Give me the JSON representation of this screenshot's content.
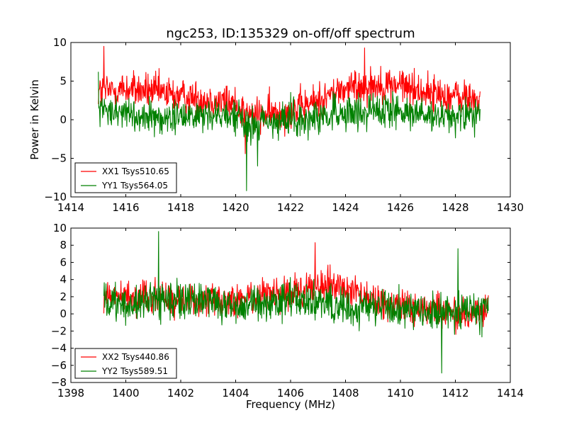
{
  "chart_data": [
    {
      "type": "line",
      "title": "ngc253, ID:135329 on-off/off spectrum",
      "xlabel": "",
      "ylabel": "Power in Kelvin",
      "xlim": [
        1414,
        1430
      ],
      "ylim": [
        -10,
        10
      ],
      "xticks": [
        1414,
        1416,
        1418,
        1420,
        1422,
        1424,
        1426,
        1428,
        1430
      ],
      "yticks": [
        -10,
        -5,
        0,
        5,
        10
      ],
      "ytick_labels": [
        "−10",
        "−5",
        "0",
        "5",
        "10"
      ],
      "legend_position": "lower left",
      "x_range": [
        1415.0,
        1428.9
      ],
      "series": [
        {
          "name": "XX1 Tsys510.65",
          "color": "#ff0000",
          "baseline": [
            [
              1415.0,
              3.6
            ],
            [
              1416.0,
              4.0
            ],
            [
              1417.0,
              3.6
            ],
            [
              1418.0,
              3.0
            ],
            [
              1419.0,
              2.6
            ],
            [
              1420.0,
              2.0
            ],
            [
              1420.5,
              0.5
            ],
            [
              1421.0,
              0.6
            ],
            [
              1422.0,
              1.0
            ],
            [
              1423.0,
              2.5
            ],
            [
              1424.0,
              4.0
            ],
            [
              1425.0,
              4.5
            ],
            [
              1426.0,
              4.5
            ],
            [
              1427.0,
              3.5
            ],
            [
              1428.0,
              3.0
            ],
            [
              1428.9,
              2.5
            ]
          ],
          "noise": 1.6,
          "peaks": [
            [
              1415.2,
              9.5
            ],
            [
              1420.35,
              -4.4
            ],
            [
              1424.7,
              9.3
            ]
          ]
        },
        {
          "name": "YY1 Tsys564.05",
          "color": "#008000",
          "baseline": [
            [
              1415.0,
              1.5
            ],
            [
              1416.0,
              1.0
            ],
            [
              1417.0,
              0.2
            ],
            [
              1418.0,
              0.5
            ],
            [
              1419.0,
              0.8
            ],
            [
              1420.0,
              0.5
            ],
            [
              1420.5,
              -1.0
            ],
            [
              1421.0,
              -0.5
            ],
            [
              1422.0,
              0.0
            ],
            [
              1423.0,
              0.5
            ],
            [
              1424.0,
              1.0
            ],
            [
              1425.0,
              1.2
            ],
            [
              1426.0,
              1.0
            ],
            [
              1427.0,
              0.5
            ],
            [
              1428.0,
              0.5
            ],
            [
              1428.9,
              0.5
            ]
          ],
          "noise": 1.5,
          "peaks": [
            [
              1415.0,
              6.2
            ],
            [
              1420.4,
              -9.2
            ],
            [
              1420.8,
              -6.0
            ]
          ]
        }
      ]
    },
    {
      "type": "line",
      "title": "",
      "xlabel": "Frequency (MHz)",
      "ylabel": "",
      "xlim": [
        1398,
        1414
      ],
      "ylim": [
        -8,
        10
      ],
      "xticks": [
        1398,
        1400,
        1402,
        1404,
        1406,
        1408,
        1410,
        1412,
        1414
      ],
      "yticks": [
        -8,
        -6,
        -4,
        -2,
        0,
        2,
        4,
        6,
        8,
        10
      ],
      "ytick_labels": [
        "−8",
        "−6",
        "−4",
        "−2",
        "0",
        "2",
        "4",
        "6",
        "8",
        "10"
      ],
      "legend_position": "lower left",
      "x_range": [
        1399.2,
        1413.2
      ],
      "series": [
        {
          "name": "XX2 Tsys440.86",
          "color": "#ff0000",
          "baseline": [
            [
              1399.2,
              2.5
            ],
            [
              1400.0,
              2.0
            ],
            [
              1401.0,
              2.0
            ],
            [
              1402.0,
              1.5
            ],
            [
              1403.0,
              2.0
            ],
            [
              1404.0,
              1.5
            ],
            [
              1405.0,
              2.0
            ],
            [
              1406.0,
              2.5
            ],
            [
              1407.0,
              3.5
            ],
            [
              1408.0,
              3.0
            ],
            [
              1409.0,
              1.5
            ],
            [
              1410.0,
              1.0
            ],
            [
              1411.0,
              0.5
            ],
            [
              1412.0,
              0.0
            ],
            [
              1413.2,
              0.5
            ]
          ],
          "noise": 1.3,
          "peaks": [
            [
              1406.9,
              8.3
            ]
          ]
        },
        {
          "name": "YY2 Tsys589.51",
          "color": "#008000",
          "baseline": [
            [
              1399.2,
              1.5
            ],
            [
              1400.0,
              1.0
            ],
            [
              1401.0,
              1.5
            ],
            [
              1402.0,
              1.5
            ],
            [
              1403.0,
              1.5
            ],
            [
              1404.0,
              1.0
            ],
            [
              1405.0,
              1.0
            ],
            [
              1406.0,
              1.5
            ],
            [
              1407.0,
              1.5
            ],
            [
              1408.0,
              0.5
            ],
            [
              1409.0,
              1.0
            ],
            [
              1410.0,
              0.5
            ],
            [
              1411.0,
              0.0
            ],
            [
              1412.0,
              0.5
            ],
            [
              1413.2,
              0.5
            ]
          ],
          "noise": 1.5,
          "peaks": [
            [
              1401.2,
              9.6
            ],
            [
              1411.5,
              -6.9
            ],
            [
              1412.1,
              7.6
            ]
          ]
        }
      ]
    }
  ]
}
